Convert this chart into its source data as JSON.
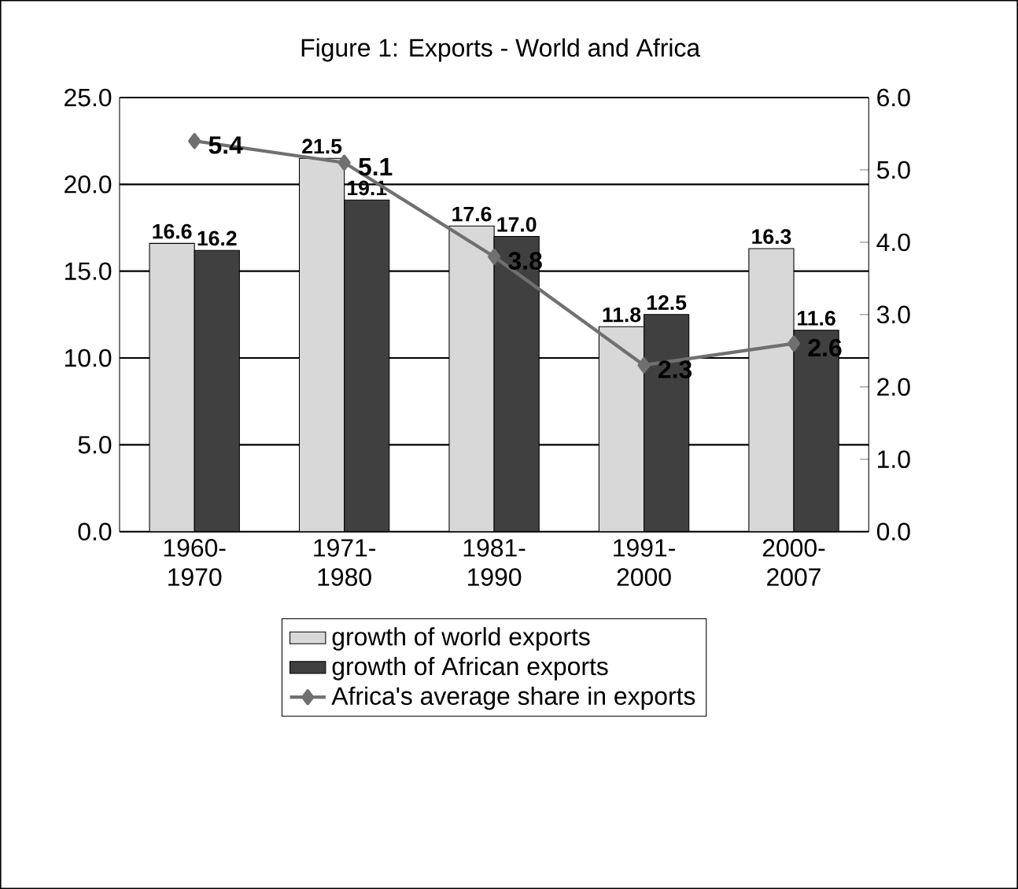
{
  "chart_data": {
    "type": "bar",
    "title": "Figure 1: Exports - World and Africa",
    "categories": [
      "1960-1970",
      "1971-1980",
      "1981-1990",
      "1991-2000",
      "2000-2007"
    ],
    "series": [
      {
        "name": "growth of world exports",
        "color": "#d8d8d8",
        "values": [
          16.6,
          21.5,
          17.6,
          11.8,
          16.3
        ],
        "value_labels": [
          "16.6",
          "21.5",
          "17.6",
          "11.8",
          "16.3"
        ]
      },
      {
        "name": "growth of African exports",
        "color": "#404040",
        "values": [
          16.2,
          19.1,
          17.0,
          12.5,
          11.6
        ],
        "value_labels": [
          "16.2",
          "19.1",
          "17.0",
          "12.5",
          "11.6"
        ]
      },
      {
        "name": "Africa's average share in exports",
        "type": "line",
        "axis": "y2",
        "color": "#707070",
        "marker": "diamond",
        "values": [
          5.4,
          5.1,
          3.8,
          2.3,
          2.6
        ],
        "value_labels": [
          "5.4",
          "5.1",
          "3.8",
          "2.3",
          "2.6"
        ]
      }
    ],
    "ylim": [
      0,
      25
    ],
    "yticks": [
      {
        "value": 0,
        "label": "0.0"
      },
      {
        "value": 5,
        "label": "5.0"
      },
      {
        "value": 10,
        "label": "10.0"
      },
      {
        "value": 15,
        "label": "15.0"
      },
      {
        "value": 20,
        "label": "20.0"
      },
      {
        "value": 25,
        "label": "25.0"
      }
    ],
    "y2lim": [
      0,
      6
    ],
    "y2ticks": [
      {
        "value": 0,
        "label": "0.0"
      },
      {
        "value": 1,
        "label": "1.0"
      },
      {
        "value": 2,
        "label": "2.0"
      },
      {
        "value": 3,
        "label": "3.0"
      },
      {
        "value": 4,
        "label": "4.0"
      },
      {
        "value": 5,
        "label": "5.0"
      },
      {
        "value": 6,
        "label": "6.0"
      }
    ],
    "grid": "y",
    "legend": "bottom"
  }
}
